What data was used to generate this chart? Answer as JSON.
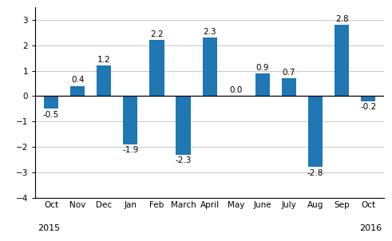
{
  "categories": [
    "Oct",
    "Nov",
    "Dec",
    "Jan",
    "Feb",
    "March",
    "April",
    "May",
    "June",
    "July",
    "Aug",
    "Sep",
    "Oct"
  ],
  "values": [
    -0.5,
    0.4,
    1.2,
    -1.9,
    2.2,
    -2.3,
    2.3,
    0.0,
    0.9,
    0.7,
    -2.8,
    2.8,
    -0.2
  ],
  "bar_color": "#1f77b4",
  "ylim": [
    -4,
    3.5
  ],
  "yticks": [
    -4,
    -3,
    -2,
    -1,
    0,
    1,
    2,
    3
  ],
  "year_labels": [
    [
      "2015",
      0
    ],
    [
      "2016",
      12
    ]
  ],
  "background_color": "#ffffff",
  "grid_color": "#c8c8c8",
  "label_fontsize": 7.5,
  "value_fontsize": 7.5,
  "year_fontsize": 8,
  "bar_width": 0.55
}
